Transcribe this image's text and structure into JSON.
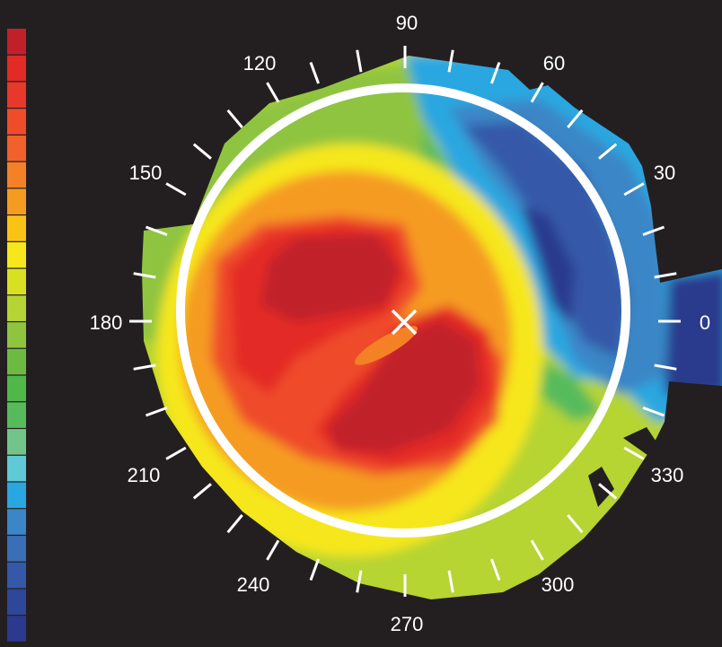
{
  "angle_labels": {
    "a0": "0",
    "a30": "30",
    "a60": "60",
    "a90": "90",
    "a120": "120",
    "a150": "150",
    "a180": "180",
    "a210": "210",
    "a240": "240",
    "a270": "270",
    "a300": "300",
    "a330": "330"
  },
  "tick_step_degrees": 10,
  "colors": {
    "background": "#231f20",
    "circle_outline": "#ffffff",
    "ticks": "#ffffff",
    "colorbar": [
      "#c1202b",
      "#e42a26",
      "#e8382a",
      "#ef4c2a",
      "#f0612b",
      "#f48125",
      "#f59b21",
      "#f9c316",
      "#f6e71d",
      "#d9e021",
      "#b6d433",
      "#8fc43f",
      "#6dba43",
      "#4fb848",
      "#57bb5b",
      "#73c48a",
      "#5fc9d6",
      "#2aa7e0",
      "#3b86c6",
      "#3a6eb6",
      "#3558a8",
      "#2f4799",
      "#2b3a8e"
    ]
  }
}
